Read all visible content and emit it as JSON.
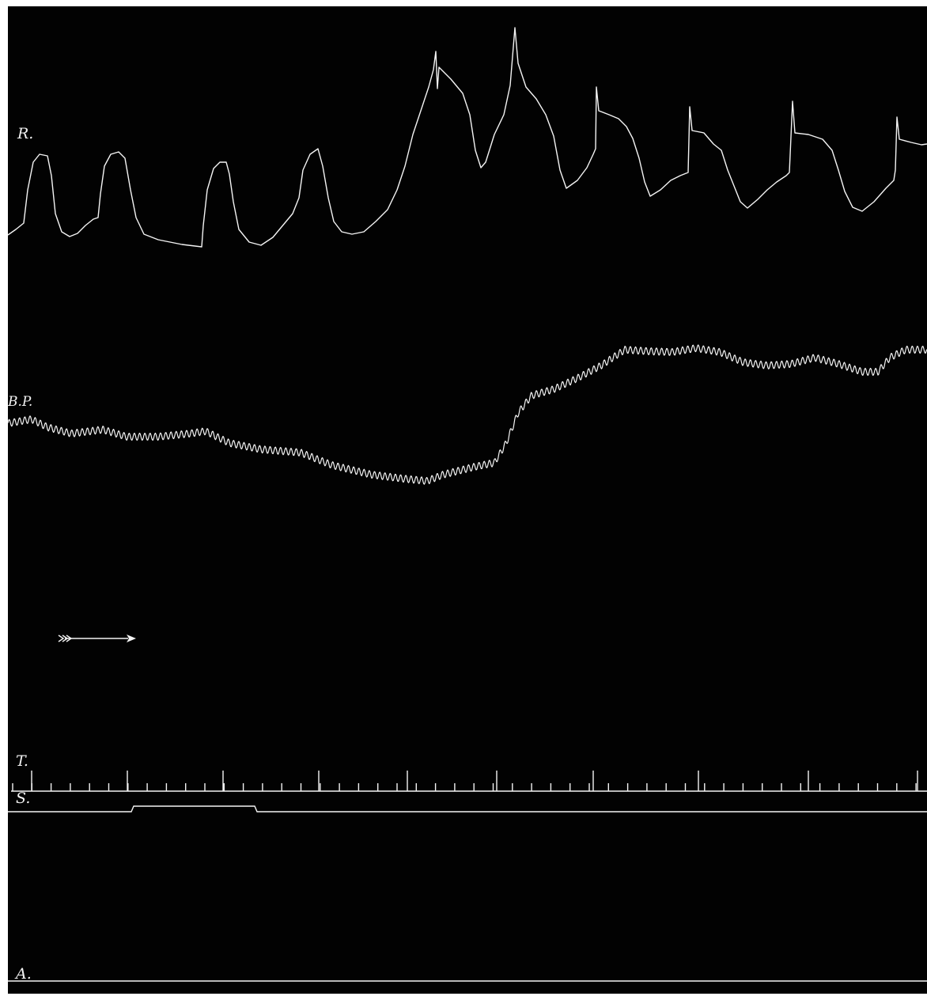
{
  "figure": {
    "background_color": "#020202",
    "trace_color": "#f4f4f4"
  },
  "labels": {
    "respiration": "R.",
    "blood_pressure": "B.P.",
    "time": "T.",
    "signal": "S.",
    "abscissa": "A."
  },
  "direction_marker": {
    "icon": "arrow-right-icon"
  }
}
